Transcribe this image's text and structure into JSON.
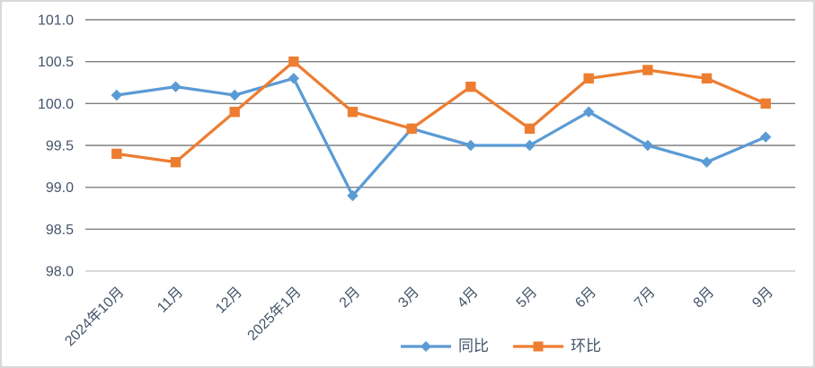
{
  "chart_data": {
    "type": "line",
    "categories": [
      "2024年10月",
      "11月",
      "12月",
      "2025年1月",
      "2月",
      "3月",
      "4月",
      "5月",
      "6月",
      "7月",
      "8月",
      "9月"
    ],
    "series": [
      {
        "name": "同比",
        "marker": "diamond",
        "color": "#5B9BD5",
        "values": [
          100.1,
          100.2,
          100.1,
          100.3,
          98.9,
          99.7,
          99.5,
          99.5,
          99.9,
          99.5,
          99.3,
          99.6
        ]
      },
      {
        "name": "环比",
        "marker": "square",
        "color": "#ED7D31",
        "values": [
          99.4,
          99.3,
          99.9,
          100.5,
          99.9,
          99.7,
          100.2,
          99.7,
          100.3,
          100.4,
          100.3,
          100.0
        ]
      }
    ],
    "title": "",
    "xlabel": "",
    "ylabel": "",
    "ylim": [
      98.0,
      101.0
    ],
    "y_ticks": [
      101.0,
      100.5,
      100.0,
      99.5,
      99.0,
      98.5,
      98.0
    ],
    "y_tick_decimals": 1,
    "grid": "horizontal",
    "legend_position": "bottom-center"
  },
  "colors": {
    "gridline": "#808080",
    "axis_line": "#d9d9d9",
    "tick_text": "#44546A",
    "frame_border": "#D9D9D9",
    "background": "#FFFFFF"
  }
}
